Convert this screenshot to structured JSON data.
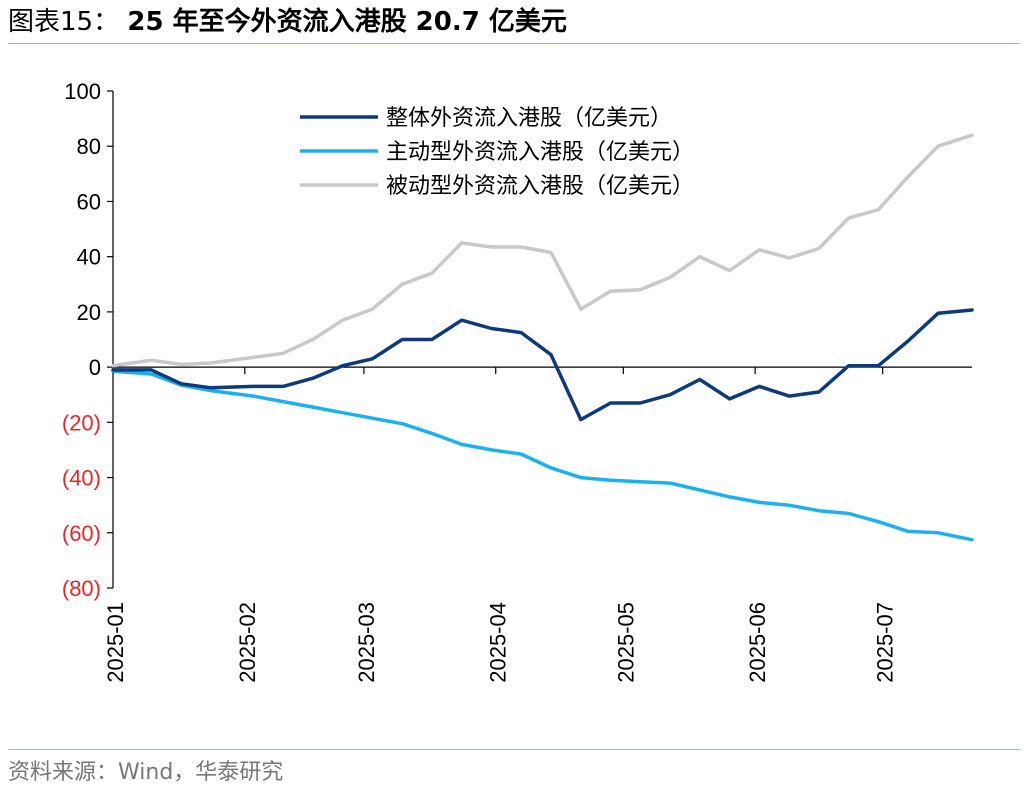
{
  "header": {
    "label": "图表15：",
    "text": "25 年至今外资流入港股 20.7 亿美元"
  },
  "footer": {
    "source": "资料来源：Wind，华泰研究"
  },
  "chart_data": {
    "type": "line",
    "title": "25 年至今外资流入港股 20.7 亿美元",
    "xlabel": "",
    "ylabel": "",
    "ylim": [
      -80,
      100
    ],
    "yticks": [
      100,
      80,
      60,
      40,
      20,
      0,
      -20,
      -40,
      -60,
      -80
    ],
    "ytick_labels": [
      "100",
      "80",
      "60",
      "40",
      "20",
      "0",
      "(20)",
      "(40)",
      "(60)",
      "(80)"
    ],
    "negative_tick_color": "#e8272a",
    "xlim": [
      "2025-01-01",
      "2025-07-22"
    ],
    "xticks": [
      "2025-01-01",
      "2025-02-01",
      "2025-03-01",
      "2025-04-01",
      "2025-05-01",
      "2025-06-01",
      "2025-07-01"
    ],
    "xtick_labels": [
      "2025-01",
      "2025-02",
      "2025-03",
      "2025-04",
      "2025-05",
      "2025-06",
      "2025-07"
    ],
    "grid": false,
    "legend_position": "top-center",
    "x": [
      "2025-01-01",
      "2025-01-10",
      "2025-01-17",
      "2025-01-24",
      "2025-02-03",
      "2025-02-10",
      "2025-02-17",
      "2025-02-24",
      "2025-03-03",
      "2025-03-10",
      "2025-03-17",
      "2025-03-24",
      "2025-03-31",
      "2025-04-07",
      "2025-04-14",
      "2025-04-21",
      "2025-04-28",
      "2025-05-05",
      "2025-05-12",
      "2025-05-19",
      "2025-05-26",
      "2025-06-02",
      "2025-06-09",
      "2025-06-16",
      "2025-06-23",
      "2025-06-30",
      "2025-07-07",
      "2025-07-14",
      "2025-07-22"
    ],
    "series": [
      {
        "name": "整体外资流入港股（亿美元）",
        "color": "#0e3a78",
        "values": [
          -1,
          -1,
          -6,
          -7.5,
          -7,
          -7,
          -4,
          0.5,
          3,
          10,
          10,
          17,
          14,
          12.5,
          4.5,
          -19,
          -13,
          -13,
          -10,
          -4.5,
          -11.5,
          -7,
          -10.5,
          -9,
          0.5,
          0.5,
          9.5,
          19.5,
          20.7
        ]
      },
      {
        "name": "主动型外资流入港股（亿美元）",
        "color": "#1db0ee",
        "values": [
          -1.5,
          -2.5,
          -6.5,
          -8.5,
          -10.5,
          -12.5,
          -14.5,
          -16.5,
          -18.5,
          -20.5,
          -24,
          -28,
          -30,
          -31.5,
          -36.5,
          -40,
          -41,
          -41.5,
          -42,
          -44.5,
          -47,
          -49,
          -50,
          -52,
          -53,
          -56,
          -59.5,
          -60,
          -62.5
        ]
      },
      {
        "name": "被动型外资流入港股（亿美元）",
        "color": "#c8c8c8",
        "values": [
          0.5,
          2.5,
          1,
          1.5,
          3.5,
          5,
          10,
          17,
          21,
          30,
          34,
          45,
          43.5,
          43.5,
          41.5,
          21,
          27.5,
          28,
          32.5,
          40,
          35,
          42.5,
          39.5,
          43,
          54,
          57,
          69,
          80,
          84
        ]
      }
    ]
  }
}
